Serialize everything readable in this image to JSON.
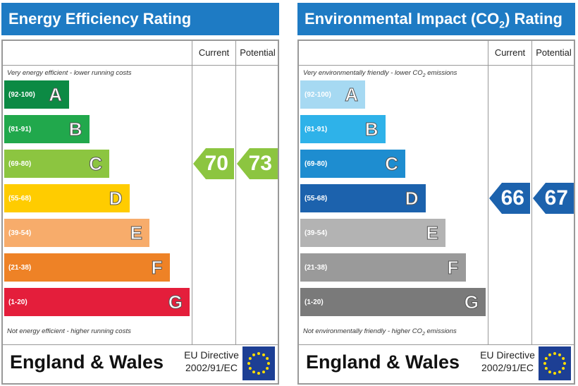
{
  "chart_data": [
    {
      "type": "table",
      "title": "Energy Efficiency Rating",
      "columns": [
        "Current",
        "Potential"
      ],
      "top_note": "Very energy efficient - lower running costs",
      "bottom_note": "Not energy efficient - higher running costs",
      "bands": [
        {
          "range": "(92-100)",
          "letter": "A",
          "color": "#0c8a44"
        },
        {
          "range": "(81-91)",
          "letter": "B",
          "color": "#21a84c"
        },
        {
          "range": "(69-80)",
          "letter": "C",
          "color": "#8cc540"
        },
        {
          "range": "(55-68)",
          "letter": "D",
          "color": "#ffcc00"
        },
        {
          "range": "(39-54)",
          "letter": "E",
          "color": "#f7ac6b"
        },
        {
          "range": "(21-38)",
          "letter": "F",
          "color": "#ee8226"
        },
        {
          "range": "(1-20)",
          "letter": "G",
          "color": "#e41e3b"
        }
      ],
      "current": {
        "value": 70,
        "band": "C",
        "color": "#8cc540"
      },
      "potential": {
        "value": 73,
        "band": "C",
        "color": "#8cc540"
      },
      "country": "England & Wales",
      "directive": [
        "EU Directive",
        "2002/91/EC"
      ]
    },
    {
      "type": "table",
      "title": "Environmental Impact (CO2) Rating",
      "columns": [
        "Current",
        "Potential"
      ],
      "top_note": "Very environmentally friendly - lower CO2 emissions",
      "bottom_note": "Not environmentally friendly - higher CO2 emissions",
      "bands": [
        {
          "range": "(92-100)",
          "letter": "A",
          "color": "#a6d9f2"
        },
        {
          "range": "(81-91)",
          "letter": "B",
          "color": "#2eb2e9"
        },
        {
          "range": "(69-80)",
          "letter": "C",
          "color": "#1e8dd0"
        },
        {
          "range": "(55-68)",
          "letter": "D",
          "color": "#1c62ad"
        },
        {
          "range": "(39-54)",
          "letter": "E",
          "color": "#b3b3b3"
        },
        {
          "range": "(21-38)",
          "letter": "F",
          "color": "#9a9a9a"
        },
        {
          "range": "(1-20)",
          "letter": "G",
          "color": "#7a7a7a"
        }
      ],
      "current": {
        "value": 66,
        "band": "D",
        "color": "#1c62ad"
      },
      "potential": {
        "value": 67,
        "band": "D",
        "color": "#1c62ad"
      },
      "country": "England & Wales",
      "directive": [
        "EU Directive",
        "2002/91/EC"
      ]
    }
  ],
  "colors": {
    "header": "#1e7bc4",
    "eu_flag_blue": "#1d3f94",
    "eu_flag_star": "#ffdd00"
  },
  "icons": {
    "eu_flag": "eu-flag-icon"
  }
}
